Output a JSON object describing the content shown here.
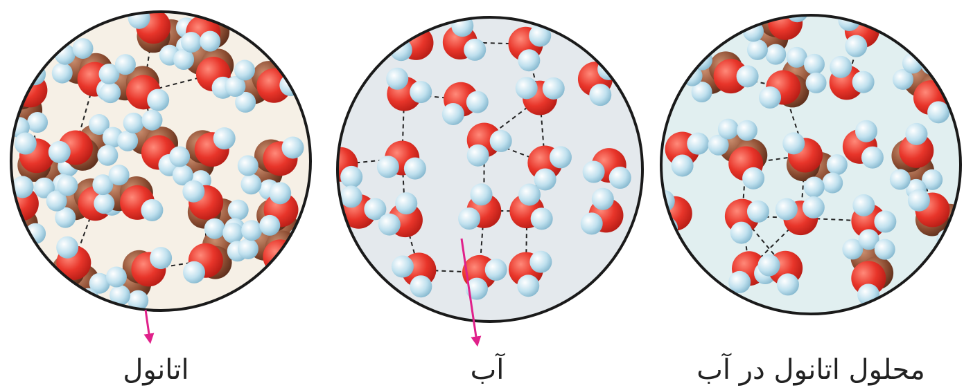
{
  "panels": [
    {
      "label": "اتانول"
    },
    {
      "label": "آب"
    },
    {
      "label": "محلول اتانول در آب"
    }
  ]
}
